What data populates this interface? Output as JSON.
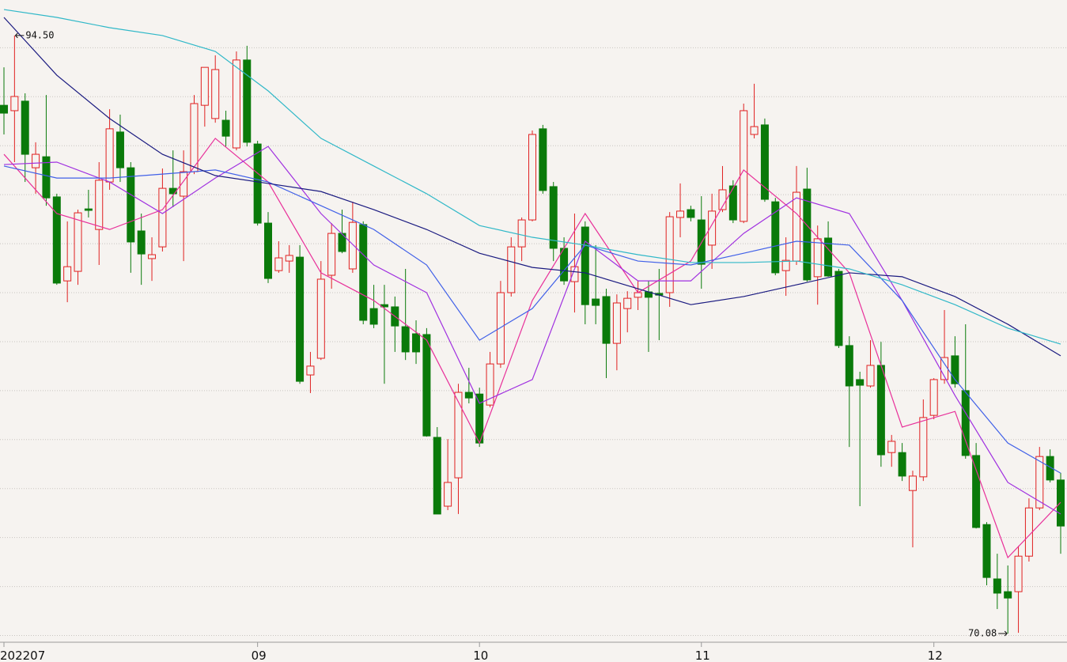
{
  "chart_data": {
    "type": "candlestick",
    "categories": [
      "202207",
      null,
      null,
      null,
      null,
      null,
      null,
      null,
      null,
      null,
      null,
      null,
      null,
      null,
      null,
      null,
      null,
      null,
      null,
      null,
      null,
      null,
      null,
      null,
      "09",
      null,
      null,
      null,
      null,
      null,
      null,
      null,
      null,
      null,
      null,
      null,
      null,
      null,
      null,
      null,
      null,
      null,
      null,
      null,
      null,
      "10",
      null,
      null,
      null,
      null,
      null,
      null,
      null,
      null,
      null,
      null,
      null,
      null,
      null,
      null,
      null,
      null,
      null,
      null,
      null,
      null,
      "11",
      null,
      null,
      null,
      null,
      null,
      null,
      null,
      null,
      null,
      null,
      null,
      null,
      null,
      null,
      null,
      null,
      null,
      null,
      null,
      null,
      null,
      "12",
      null,
      null,
      null,
      null,
      null,
      null,
      null,
      null,
      null,
      null,
      null,
      null
    ],
    "open": [
      91.65,
      91.43,
      91.82,
      89.1,
      89.55,
      87.91,
      84.48,
      84.87,
      87.42,
      86.58,
      88.52,
      90.56,
      89.1,
      86.52,
      85.39,
      85.87,
      88.26,
      87.94,
      88.94,
      91.65,
      91.11,
      91.04,
      89.91,
      93.5,
      90.07,
      86.84,
      84.9,
      85.29,
      85.45,
      80.64,
      81.32,
      84.71,
      86.42,
      84.97,
      86.78,
      83.35,
      83.51,
      83.42,
      82.61,
      82.32,
      82.29,
      78.09,
      75.28,
      76.44,
      79.93,
      79.86,
      79.41,
      81.09,
      84.0,
      85.87,
      86.97,
      90.69,
      88.33,
      85.81,
      84.45,
      86.68,
      83.74,
      83.84,
      81.93,
      83.35,
      83.81,
      84.03,
      83.97,
      84.0,
      87.07,
      87.39,
      86.97,
      85.94,
      87.39,
      88.36,
      86.91,
      90.46,
      90.85,
      87.71,
      84.9,
      85.29,
      88.23,
      84.65,
      86.23,
      84.87,
      81.84,
      80.45,
      80.19,
      81.03,
      77.47,
      77.47,
      75.92,
      76.48,
      78.99,
      80.45,
      81.42,
      80.0,
      77.35,
      74.53,
      72.31,
      71.79,
      71.79,
      73.24,
      75.21,
      77.31,
      76.35
    ],
    "high": [
      93.2,
      94.5,
      92.14,
      90.14,
      92.07,
      88.04,
      86.91,
      87.39,
      88.2,
      89.33,
      91.49,
      91.27,
      89.33,
      87.23,
      86.26,
      89.07,
      89.81,
      89.81,
      92.07,
      93.2,
      93.69,
      91.43,
      93.85,
      94.08,
      90.2,
      87.29,
      86.1,
      85.94,
      85.94,
      81.58,
      85.29,
      86.84,
      87.39,
      87.71,
      86.91,
      84.32,
      84.32,
      83.84,
      84.97,
      82.87,
      82.55,
      78.51,
      78.02,
      80.28,
      80.93,
      80.12,
      81.58,
      84.48,
      86.26,
      87.07,
      90.62,
      90.85,
      88.52,
      86.26,
      87.23,
      86.91,
      85.94,
      84.16,
      83.93,
      84.06,
      84.48,
      84.48,
      84.97,
      87.29,
      88.46,
      87.55,
      87.94,
      88.04,
      89.17,
      88.59,
      91.72,
      92.53,
      91.11,
      87.87,
      86.26,
      89.17,
      89.1,
      86.74,
      86.91,
      84.97,
      82.22,
      80.77,
      82.06,
      81.99,
      78.19,
      77.86,
      76.73,
      79.64,
      80.51,
      83.29,
      82.22,
      82.71,
      77.86,
      74.63,
      73.34,
      72.86,
      73.66,
      75.6,
      77.7,
      77.6,
      76.64
    ],
    "low": [
      90.46,
      89.33,
      88.52,
      88.04,
      87.55,
      84.32,
      83.61,
      84.32,
      87.07,
      85.13,
      88.2,
      88.52,
      84.81,
      84.32,
      84.48,
      85.68,
      87.49,
      85.29,
      88.84,
      90.78,
      90.94,
      89.97,
      89.81,
      89.97,
      86.74,
      84.39,
      84.81,
      84.81,
      80.28,
      79.9,
      81.25,
      84.16,
      85.61,
      84.81,
      82.71,
      82.55,
      80.28,
      81.58,
      81.25,
      81.09,
      78.12,
      74.96,
      75.12,
      74.96,
      79.48,
      77.7,
      79.32,
      80.93,
      83.84,
      85.29,
      86.91,
      88.04,
      85.29,
      84.32,
      83.19,
      82.71,
      82.71,
      80.51,
      80.83,
      82.38,
      83.29,
      81.58,
      82.06,
      83.42,
      86.26,
      86.91,
      84.16,
      84.97,
      87.29,
      86.84,
      86.84,
      90.3,
      87.71,
      84.71,
      83.87,
      85.13,
      84.45,
      83.51,
      84.65,
      81.74,
      77.7,
      75.28,
      80.12,
      76.89,
      76.89,
      76.31,
      73.6,
      76.31,
      78.83,
      80.28,
      80.12,
      77.22,
      74.37,
      72.05,
      71.08,
      70.08,
      70.11,
      73.02,
      75.12,
      76.25,
      73.34
    ],
    "close": [
      91.33,
      92.01,
      89.65,
      89.65,
      87.87,
      84.39,
      85.06,
      87.26,
      87.36,
      88.59,
      90.69,
      89.1,
      86.07,
      85.58,
      85.55,
      88.26,
      88.04,
      88.94,
      91.72,
      93.2,
      93.11,
      90.39,
      93.5,
      90.14,
      86.84,
      84.58,
      85.42,
      85.52,
      80.38,
      81.0,
      84.55,
      86.42,
      85.68,
      86.87,
      82.87,
      82.71,
      83.42,
      82.64,
      81.58,
      81.58,
      78.15,
      74.96,
      76.25,
      79.93,
      79.7,
      77.86,
      81.09,
      84.0,
      85.87,
      86.97,
      90.46,
      88.17,
      85.81,
      84.48,
      85.06,
      83.51,
      83.48,
      81.93,
      83.58,
      83.77,
      84.0,
      83.81,
      83.9,
      87.1,
      87.33,
      87.07,
      85.16,
      87.33,
      88.2,
      86.97,
      91.43,
      90.78,
      87.81,
      84.81,
      85.32,
      88.1,
      84.52,
      86.2,
      84.68,
      81.84,
      80.19,
      80.22,
      81.03,
      77.38,
      77.93,
      76.51,
      76.51,
      78.9,
      80.45,
      81.35,
      80.28,
      77.35,
      74.41,
      72.37,
      71.73,
      71.53,
      73.24,
      75.21,
      77.31,
      76.35,
      74.47
    ],
    "up_color": "#e02020",
    "down_color": "#0a7a0a",
    "ylim": [
      69.79,
      95.95
    ],
    "grid": true,
    "gridlines": [
      70,
      72,
      74,
      76,
      78,
      80,
      82,
      84,
      86,
      88,
      90,
      92,
      94
    ],
    "max_label": "94.50",
    "min_label": "70.08",
    "ma_x": [
      0,
      5,
      10,
      15,
      20,
      25,
      30,
      35,
      40,
      45,
      50,
      55,
      60,
      65,
      70,
      75,
      80,
      85,
      90,
      95,
      100
    ],
    "moving_averages": [
      {
        "color": "#e8309a",
        "values": [
          89.65,
          87.23,
          86.58,
          87.39,
          90.3,
          88.52,
          84.81,
          83.68,
          82.06,
          77.86,
          83.68,
          87.23,
          84.0,
          85.29,
          89.01,
          87.23,
          84.81,
          78.51,
          79.15,
          73.18,
          75.44
        ]
      },
      {
        "color": "#a030e0",
        "values": [
          89.23,
          89.33,
          88.52,
          87.23,
          88.68,
          89.97,
          87.23,
          85.13,
          84.0,
          79.48,
          80.45,
          86.1,
          84.48,
          84.48,
          86.42,
          87.87,
          87.23,
          83.68,
          79.8,
          76.25,
          74.96
        ]
      },
      {
        "color": "#4060e8",
        "values": [
          89.17,
          88.68,
          88.68,
          88.84,
          89.01,
          88.52,
          87.55,
          86.58,
          85.13,
          82.06,
          83.35,
          85.94,
          85.29,
          85.13,
          85.61,
          86.1,
          85.94,
          83.68,
          80.45,
          77.86,
          76.63
        ]
      },
      {
        "color": "#1a1a80",
        "values": [
          95.24,
          92.88,
          91.11,
          89.65,
          88.78,
          88.46,
          88.13,
          87.39,
          86.58,
          85.61,
          85.03,
          84.81,
          84.16,
          83.51,
          83.84,
          84.32,
          84.81,
          84.65,
          83.84,
          82.71,
          81.42
        ]
      },
      {
        "color": "#30b8c8",
        "values": [
          95.56,
          95.24,
          94.82,
          94.5,
          93.85,
          92.24,
          90.3,
          89.17,
          88.04,
          86.74,
          86.26,
          85.94,
          85.55,
          85.23,
          85.23,
          85.29,
          84.97,
          84.32,
          83.51,
          82.55,
          81.9
        ]
      }
    ]
  }
}
